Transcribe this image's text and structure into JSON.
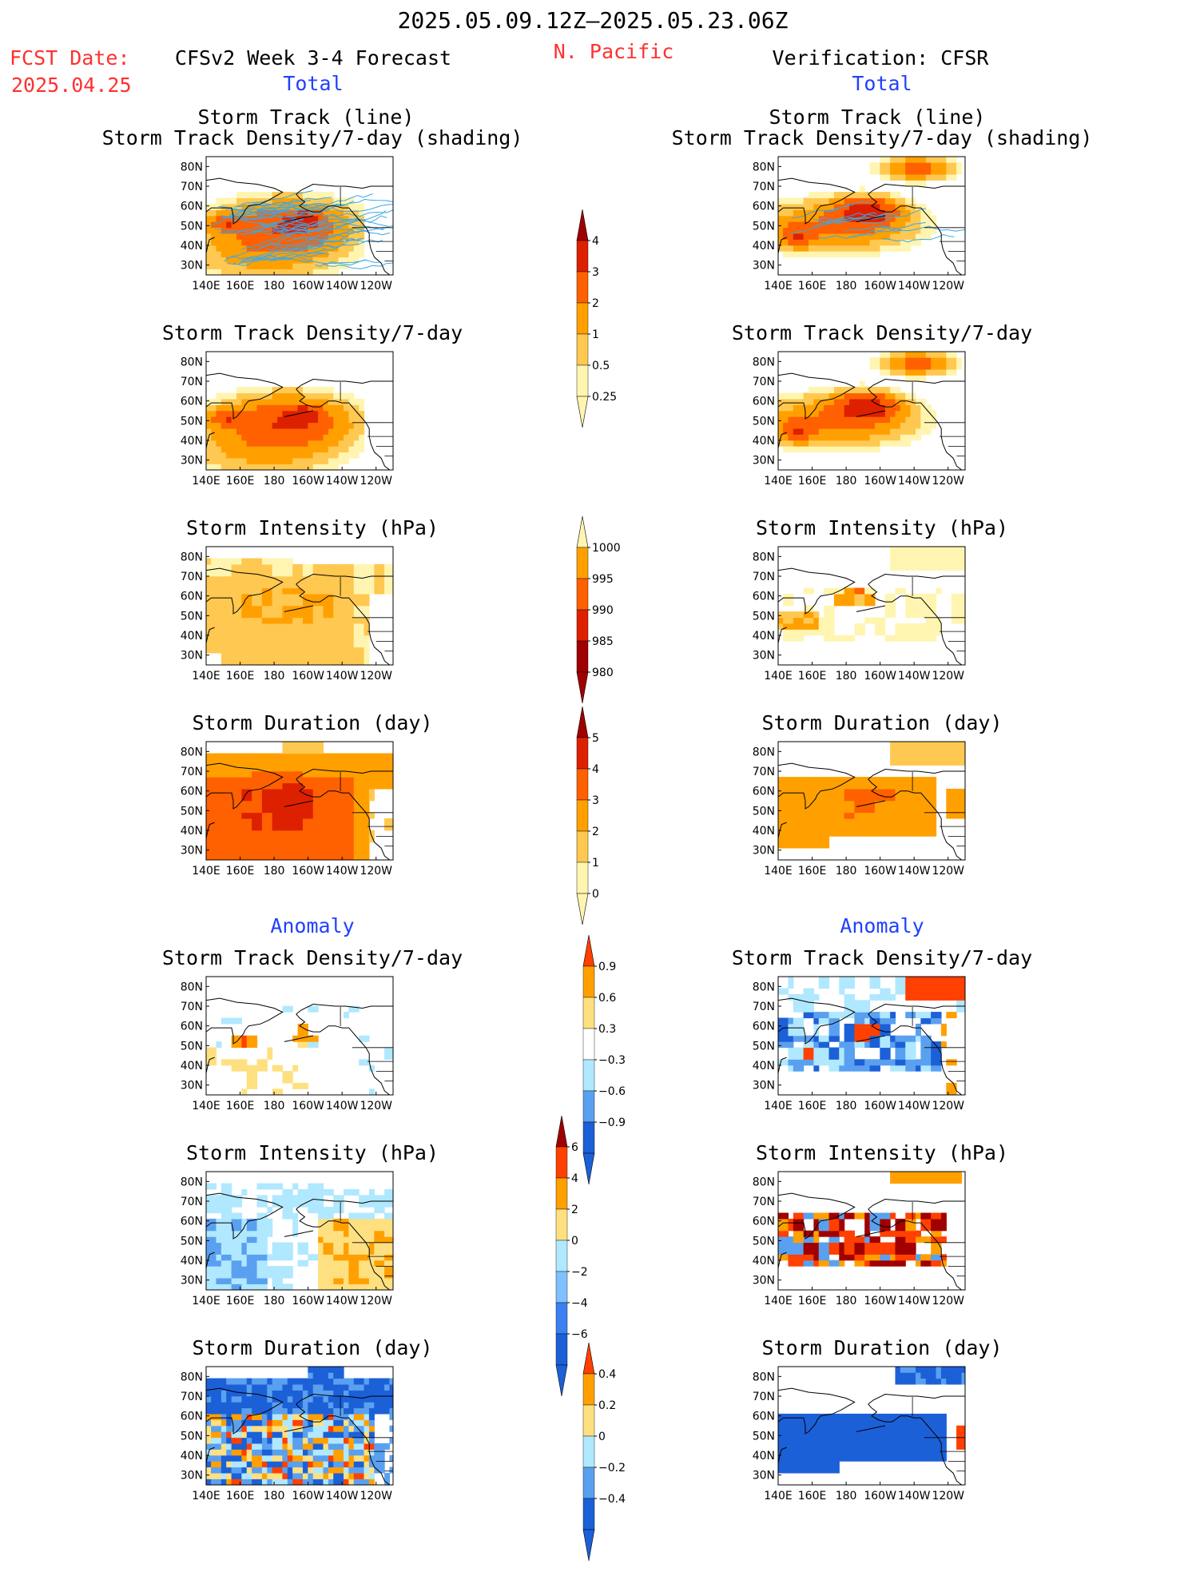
{
  "header": {
    "period": "2025.05.09.12Z–2025.05.23.06Z",
    "fcst_date_label": "FCST Date:",
    "fcst_date": "2025.04.25",
    "model": "CFSv2 Week 3-4 Forecast",
    "region": "N. Pacific",
    "verification": "Verification: CFSR"
  },
  "sections": {
    "total": "Total",
    "anomaly": "Anomaly"
  },
  "panel_titles": {
    "track": "Storm Track (line)",
    "track_density_shading": "Storm Track Density/7-day (shading)",
    "density": "Storm Track Density/7-day",
    "intensity": "Storm Intensity (hPa)",
    "duration": "Storm Duration (day)"
  },
  "axes": {
    "lat_ticks": [
      "80N",
      "70N",
      "60N",
      "50N",
      "40N",
      "30N"
    ],
    "lon_ticks": [
      "140E",
      "160E",
      "180",
      "160W",
      "140W",
      "120W"
    ]
  },
  "colorbars": {
    "density_total": {
      "labels": [
        "4",
        "3",
        "2",
        "1",
        "0.5",
        "0.25"
      ],
      "colors": [
        "#a00000",
        "#dd2000",
        "#ff6000",
        "#ffa000",
        "#ffc850",
        "#fff5b0"
      ]
    },
    "intensity_total": {
      "labels": [
        "1000",
        "995",
        "990",
        "985",
        "980"
      ],
      "colors": [
        "#fff5b0",
        "#ffa000",
        "#ff6000",
        "#dd2000",
        "#a00000"
      ]
    },
    "duration_total": {
      "labels": [
        "5",
        "4",
        "3",
        "2",
        "1",
        "0"
      ],
      "colors": [
        "#a00000",
        "#dd2000",
        "#ff6000",
        "#ffa000",
        "#ffc850",
        "#fff5b0"
      ]
    },
    "density_anom": {
      "labels": [
        "0.9",
        "0.6",
        "0.3",
        "−0.3",
        "−0.6",
        "−0.9"
      ],
      "colors": [
        "#ff4000",
        "#ffa000",
        "#ffe080",
        "#ffffff",
        "#b0e8ff",
        "#5aa0f0",
        "#1c60d8"
      ]
    },
    "intensity_anom": {
      "labels": [
        "6",
        "4",
        "2",
        "0",
        "−2",
        "−4",
        "−6"
      ],
      "colors": [
        "#a00000",
        "#ff4000",
        "#ffa000",
        "#ffe080",
        "#b0e8ff",
        "#80c0ff",
        "#3a80f0",
        "#1c60d8"
      ]
    },
    "duration_anom": {
      "labels": [
        "0.4",
        "0.2",
        "0",
        "−0.2",
        "−0.4"
      ],
      "colors": [
        "#ff4000",
        "#ffa000",
        "#ffe080",
        "#b0e8ff",
        "#5aa0f0",
        "#1c60d8"
      ]
    }
  }
}
